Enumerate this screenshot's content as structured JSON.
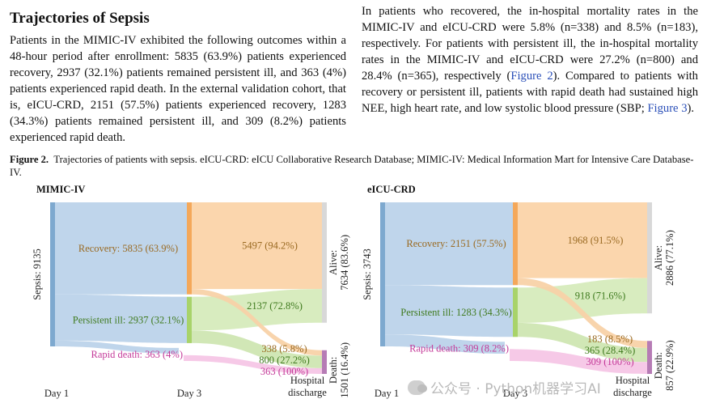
{
  "article": {
    "heading": "Trajectories of Sepsis",
    "para_left": "Patients in the MIMIC-IV exhibited the following outcomes within a 48-hour period after enrollment: 5835 (63.9%) patients experienced recovery, 2937 (32.1%) patients remained persistent ill, and 363 (4%) patients experienced rapid death. In the external validation cohort, that is, eICU-CRD, 2151 (57.5%) patients experienced recovery, 1283 (34.3%) patients remained persistent ill, and 309 (8.2%) patients experienced rapid death.",
    "para_right_a": "In patients who recovered, the in-hospital mortality rates in the MIMIC-IV and eICU-CRD were 5.8% (n=338) and 8.5% (n=183), respectively. For patients with persistent ill, the in-hospital mortality rates in the MIMIC-IV and eICU-CRD were 27.2% (n=800) and 28.4% (n=365), respectively (",
    "link_fig2": "Figure 2",
    "para_right_b": "). Compared to patients with recovery or persistent ill, patients with rapid death had sustained high NEE, high heart rate, and low systolic blood pressure (SBP; ",
    "link_fig3": "Figure 3",
    "para_right_c": ")."
  },
  "caption": {
    "label": "Figure 2.",
    "text": "Trajectories of patients with sepsis. eICU-CRD: eICU Collaborative Research Database; MIMIC-IV: Medical Information Mart for Intensive Care Database-IV."
  },
  "watermark": "公众号 · Python机器学习AI",
  "colors": {
    "sepsis": "#7ea9cf",
    "recovery_bar": "#f4a85a",
    "recovery_flow": "#bcd3ea",
    "persistent_bar": "#a8d36a",
    "persistent_flow": "#d3e8b5",
    "rapid_flow": "#f6c6e6",
    "alive_bar": "#d8d8d8",
    "death_bar": "#b67cb5",
    "alive_flow_rec": "#fbd4a9",
    "alive_flow_pers": "#d6ebbc",
    "death_flow_rec": "#f8d2a8",
    "death_flow_pers": "#cfe6b2",
    "label_rec": "#9a6a22",
    "label_pers": "#3f7a1e",
    "label_rapid": "#c43a99"
  },
  "chart_data": [
    {
      "type": "sankey",
      "title": "MIMIC-IV",
      "stages": [
        "Day 1",
        "Day 3",
        "Hospital discharge"
      ],
      "nodes": {
        "sepsis": {
          "label": "Sepsis: 9135",
          "value": 9135
        },
        "recovery": {
          "label": "Recovery: 5835 (63.9%)",
          "value": 5835
        },
        "persistent": {
          "label": "Persistent ill: 2937 (32.1%)",
          "value": 2937
        },
        "rapid": {
          "label": "Rapid death: 363 (4%)",
          "value": 363
        },
        "alive": {
          "label": "Alive:",
          "label2": "7634 (83.6%)",
          "value": 7634
        },
        "death": {
          "label": "Death:",
          "label2": "1501 (16.4%)",
          "value": 1501
        }
      },
      "links": [
        {
          "source": "recovery",
          "target": "alive",
          "value": 5497,
          "label": "5497 (94.2%)"
        },
        {
          "source": "recovery",
          "target": "death",
          "value": 338,
          "label": "338 (5.8%)"
        },
        {
          "source": "persistent",
          "target": "alive",
          "value": 2137,
          "label": "2137 (72.8%)"
        },
        {
          "source": "persistent",
          "target": "death",
          "value": 800,
          "label": "800 (27.2%)"
        },
        {
          "source": "rapid",
          "target": "death",
          "value": 363,
          "label": "363 (100%)"
        }
      ]
    },
    {
      "type": "sankey",
      "title": "eICU-CRD",
      "stages": [
        "Day 1",
        "Day 3",
        "Hospital discharge"
      ],
      "nodes": {
        "sepsis": {
          "label": "Sepsis: 3743",
          "value": 3743
        },
        "recovery": {
          "label": "Recovery: 2151 (57.5%)",
          "value": 2151
        },
        "persistent": {
          "label": "Persistent ill: 1283 (34.3%)",
          "value": 1283
        },
        "rapid": {
          "label": "Rapid death: 309 (8.2%)",
          "value": 309
        },
        "alive": {
          "label": "Alive:",
          "label2": "2886 (77.1%)",
          "value": 2886
        },
        "death": {
          "label": "Death:",
          "label2": "857 (22.9%)",
          "value": 857
        }
      },
      "links": [
        {
          "source": "recovery",
          "target": "alive",
          "value": 1968,
          "label": "1968 (91.5%)"
        },
        {
          "source": "recovery",
          "target": "death",
          "value": 183,
          "label": "183 (8.5%)"
        },
        {
          "source": "persistent",
          "target": "alive",
          "value": 918,
          "label": "918 (71.6%)"
        },
        {
          "source": "persistent",
          "target": "death",
          "value": 365,
          "label": "365 (28.4%)"
        },
        {
          "source": "rapid",
          "target": "death",
          "value": 309,
          "label": "309 (100%)"
        }
      ]
    }
  ]
}
